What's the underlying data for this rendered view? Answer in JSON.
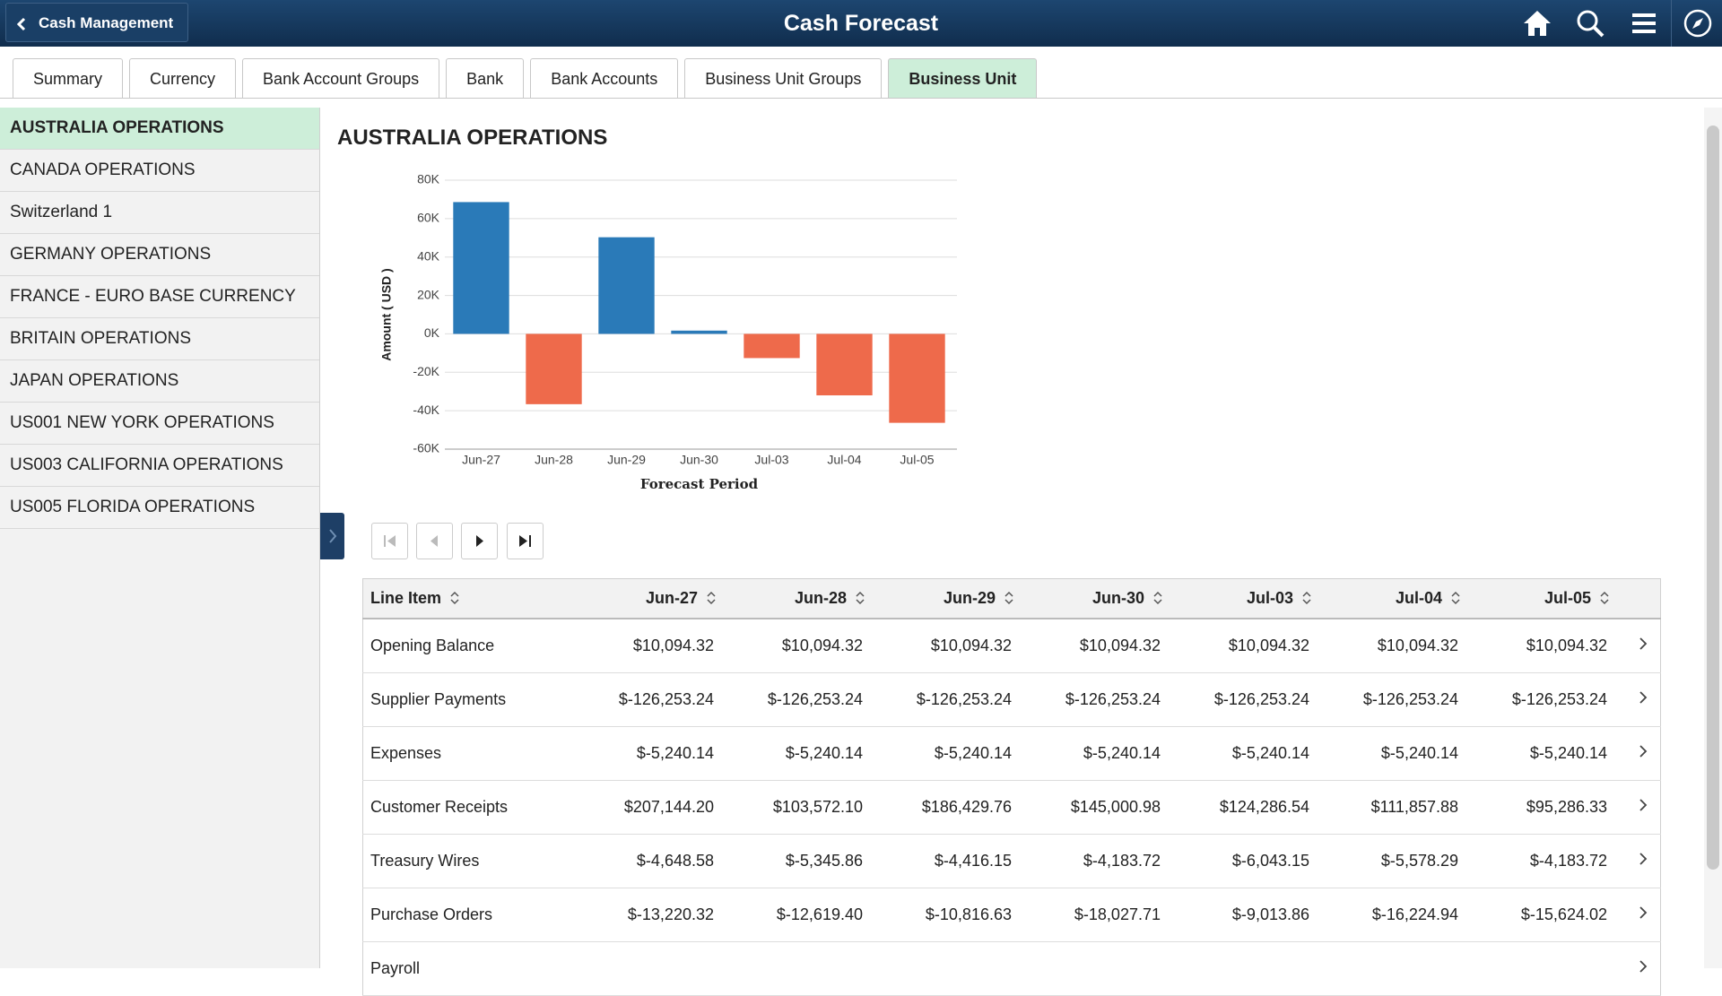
{
  "header": {
    "back": "Cash Management",
    "title": "Cash Forecast"
  },
  "tabs": [
    "Summary",
    "Currency",
    "Bank Account Groups",
    "Bank",
    "Bank Accounts",
    "Business Unit Groups",
    "Business Unit"
  ],
  "selected_tab": 6,
  "sidebar": [
    "AUSTRALIA OPERATIONS",
    "CANADA OPERATIONS",
    "Switzerland 1",
    "GERMANY OPERATIONS",
    "FRANCE - EURO BASE CURRENCY",
    "BRITAIN OPERATIONS",
    "JAPAN OPERATIONS",
    "US001 NEW YORK OPERATIONS",
    "US003 CALIFORNIA OPERATIONS",
    "US005 FLORIDA OPERATIONS"
  ],
  "selected_item": 0,
  "chart_data": {
    "type": "bar",
    "title": "AUSTRALIA OPERATIONS",
    "x_label": "Forecast Period",
    "y_label": "Amount ( USD )",
    "categories": [
      "Jun-27",
      "Jun-28",
      "Jun-29",
      "Jun-30",
      "Jul-03",
      "Jul-04",
      "Jul-05"
    ],
    "values": [
      68600,
      -36600,
      50300,
      1700,
      -12600,
      -32000,
      -46300
    ],
    "positive_color": "#2a7ab8",
    "negative_color": "#ee6a4b",
    "ylim": [
      -60000,
      80000
    ],
    "yticks": [
      {
        "value": -60000,
        "label": "-60K"
      },
      {
        "value": -40000,
        "label": "-40K"
      },
      {
        "value": -20000,
        "label": "-20K"
      },
      {
        "value": 0,
        "label": "0K"
      },
      {
        "value": 20000,
        "label": "20K"
      },
      {
        "value": 40000,
        "label": "40K"
      },
      {
        "value": 60000,
        "label": "60K"
      },
      {
        "value": 80000,
        "label": "80K"
      }
    ],
    "grid": true
  },
  "table": {
    "columns": [
      "Line Item",
      "Jun-27",
      "Jun-28",
      "Jun-29",
      "Jun-30",
      "Jul-03",
      "Jul-04",
      "Jul-05"
    ],
    "rows": [
      [
        "Opening Balance",
        "$10,094.32",
        "$10,094.32",
        "$10,094.32",
        "$10,094.32",
        "$10,094.32",
        "$10,094.32",
        "$10,094.32"
      ],
      [
        "Supplier Payments",
        "$-126,253.24",
        "$-126,253.24",
        "$-126,253.24",
        "$-126,253.24",
        "$-126,253.24",
        "$-126,253.24",
        "$-126,253.24"
      ],
      [
        "Expenses",
        "$-5,240.14",
        "$-5,240.14",
        "$-5,240.14",
        "$-5,240.14",
        "$-5,240.14",
        "$-5,240.14",
        "$-5,240.14"
      ],
      [
        "Customer Receipts",
        "$207,144.20",
        "$103,572.10",
        "$186,429.76",
        "$145,000.98",
        "$124,286.54",
        "$111,857.88",
        "$95,286.33"
      ],
      [
        "Treasury Wires",
        "$-4,648.58",
        "$-5,345.86",
        "$-4,416.15",
        "$-4,183.72",
        "$-6,043.15",
        "$-5,578.29",
        "$-4,183.72"
      ],
      [
        "Purchase Orders",
        "$-13,220.32",
        "$-12,619.40",
        "$-10,816.63",
        "$-18,027.71",
        "$-9,013.86",
        "$-16,224.94",
        "$-15,624.02"
      ],
      [
        "Payroll"
      ]
    ]
  }
}
